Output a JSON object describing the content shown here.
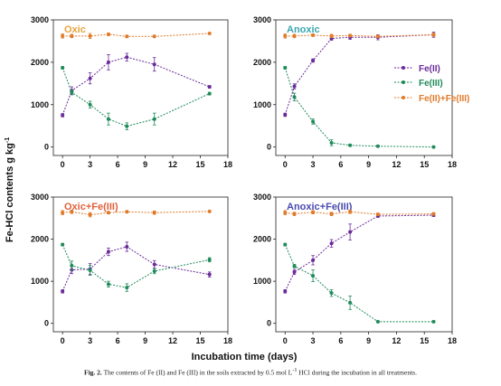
{
  "figure": {
    "ylabel_main": "Fe-HCl contents g kg",
    "ylabel_sup": "-1",
    "xlabel": "Incubation time (days)",
    "caption_label": "Fig. 2.",
    "caption_text_part1": "The contents of Fe (II) and Fe (III) in the soils extracted by 0.5 mol L",
    "caption_sup": "-1",
    "caption_text_part2": "HCl during the incubation in all treatments."
  },
  "colors": {
    "fe2": "#6a2a9a",
    "fe3": "#1f8a5a",
    "total": "#e07a2a",
    "title_oxic": "#e8a33a",
    "title_anoxic": "#3aa6b0",
    "title_oxic_fe3": "#e0603a",
    "title_anoxic_fe3": "#4a4ab0"
  },
  "chart_data": [
    {
      "type": "line",
      "title": "Oxic",
      "x": [
        0,
        1,
        3,
        5,
        7,
        10,
        16
      ],
      "xticks": [
        0,
        3,
        6,
        9,
        12,
        15,
        18
      ],
      "yticks": [
        0,
        1000,
        2000,
        3000
      ],
      "xlim": [
        -1,
        18
      ],
      "ylim": [
        -200,
        3000
      ],
      "series": [
        {
          "name": "Fe(II)",
          "values": [
            750,
            1330,
            1620,
            2000,
            2120,
            1950,
            1420
          ],
          "errors": [
            40,
            90,
            130,
            180,
            90,
            160,
            30
          ]
        },
        {
          "name": "Fe(III)",
          "values": [
            1870,
            1290,
            1000,
            660,
            490,
            660,
            1260
          ],
          "errors": [
            30,
            60,
            80,
            140,
            80,
            140,
            30
          ]
        },
        {
          "name": "Fe(II)+Fe(III)",
          "values": [
            2620,
            2620,
            2620,
            2660,
            2610,
            2610,
            2680
          ],
          "errors": [
            50,
            40,
            60,
            30,
            30,
            30,
            20
          ]
        }
      ]
    },
    {
      "type": "line",
      "title": "Anoxic",
      "x": [
        0,
        1,
        3,
        5,
        7,
        10,
        16
      ],
      "xticks": [
        0,
        3,
        6,
        9,
        12,
        15,
        18
      ],
      "yticks": [
        0,
        1000,
        2000,
        3000
      ],
      "xlim": [
        -1,
        18
      ],
      "ylim": [
        -200,
        3000
      ],
      "series": [
        {
          "name": "Fe(II)",
          "values": [
            760,
            1430,
            2040,
            2560,
            2590,
            2590,
            2650
          ],
          "errors": [
            40,
            60,
            40,
            40,
            50,
            60,
            60
          ]
        },
        {
          "name": "Fe(III)",
          "values": [
            1870,
            1180,
            600,
            100,
            40,
            20,
            0
          ],
          "errors": [
            30,
            90,
            60,
            70,
            20,
            20,
            10
          ]
        },
        {
          "name": "Fe(II)+Fe(III)",
          "values": [
            2620,
            2620,
            2640,
            2620,
            2630,
            2610,
            2650
          ],
          "errors": [
            50,
            40,
            30,
            40,
            30,
            30,
            40
          ]
        }
      ]
    },
    {
      "type": "line",
      "title": "Oxic+Fe(III)",
      "x": [
        0,
        1,
        3,
        5,
        7,
        10,
        16
      ],
      "xticks": [
        0,
        3,
        6,
        9,
        12,
        15,
        18
      ],
      "yticks": [
        0,
        1000,
        2000,
        3000
      ],
      "xlim": [
        -1,
        18
      ],
      "ylim": [
        -200,
        3000
      ],
      "series": [
        {
          "name": "Fe(II)",
          "values": [
            760,
            1270,
            1290,
            1700,
            1820,
            1400,
            1160
          ],
          "errors": [
            40,
            90,
            130,
            90,
            110,
            90,
            60
          ]
        },
        {
          "name": "Fe(III)",
          "values": [
            1870,
            1370,
            1260,
            930,
            850,
            1240,
            1510
          ],
          "errors": [
            30,
            110,
            120,
            70,
            90,
            60,
            50
          ]
        },
        {
          "name": "Fe(II)+Fe(III)",
          "values": [
            2630,
            2650,
            2580,
            2630,
            2650,
            2630,
            2660
          ],
          "errors": [
            50,
            40,
            50,
            30,
            30,
            40,
            20
          ]
        }
      ]
    },
    {
      "type": "line",
      "title": "Anoxic+Fe(III)",
      "x": [
        0,
        1,
        3,
        5,
        7,
        10,
        16
      ],
      "xticks": [
        0,
        3,
        6,
        9,
        12,
        15,
        18
      ],
      "yticks": [
        0,
        1000,
        2000,
        3000
      ],
      "xlim": [
        -1,
        18
      ],
      "ylim": [
        -200,
        3000
      ],
      "series": [
        {
          "name": "Fe(II)",
          "values": [
            760,
            1220,
            1500,
            1900,
            2170,
            2550,
            2570
          ],
          "errors": [
            40,
            60,
            110,
            90,
            190,
            30,
            30
          ]
        },
        {
          "name": "Fe(III)",
          "values": [
            1870,
            1360,
            1130,
            720,
            490,
            40,
            40
          ],
          "errors": [
            30,
            40,
            140,
            80,
            160,
            20,
            20
          ]
        },
        {
          "name": "Fe(II)+Fe(III)",
          "values": [
            2630,
            2600,
            2640,
            2600,
            2650,
            2590,
            2600
          ],
          "errors": [
            50,
            40,
            40,
            40,
            40,
            30,
            30
          ]
        }
      ]
    }
  ]
}
